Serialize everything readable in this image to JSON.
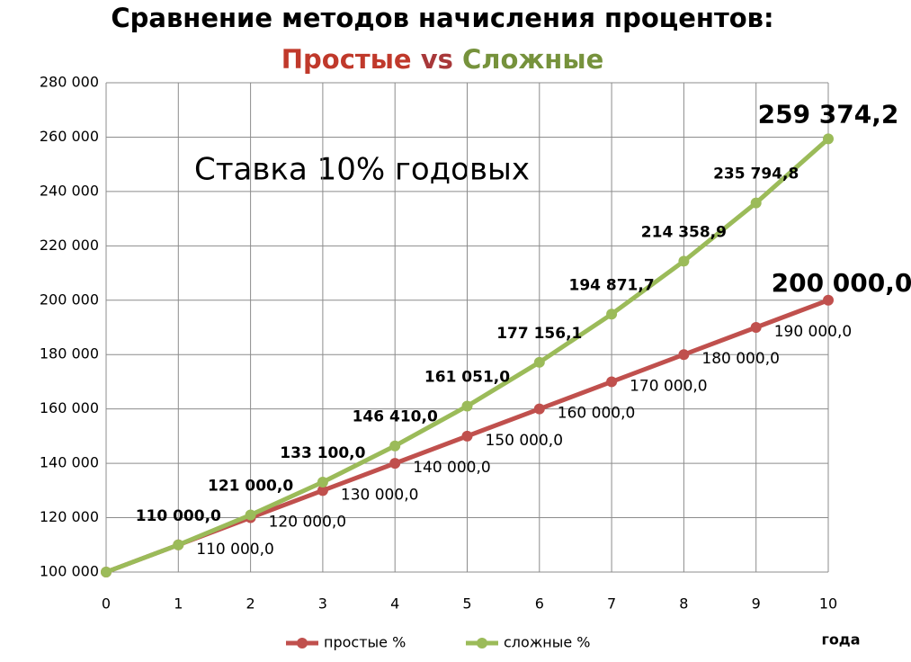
{
  "chart_data": {
    "type": "line",
    "title": "Сравнение методов начисления процентов:",
    "subtitle": [
      "Простые",
      "vs",
      "Сложные"
    ],
    "annotation": "Ставка 10% годовых",
    "x_label": "года",
    "x": [
      0,
      1,
      2,
      3,
      4,
      5,
      6,
      7,
      8,
      9,
      10
    ],
    "xlim": [
      0,
      10
    ],
    "xticks": [
      0,
      1,
      2,
      3,
      4,
      5,
      6,
      7,
      8,
      9,
      10
    ],
    "ylim": [
      100000,
      280000
    ],
    "yticks": [
      {
        "value": 100000,
        "label": "100 000"
      },
      {
        "value": 120000,
        "label": "120 000"
      },
      {
        "value": 140000,
        "label": "140 000"
      },
      {
        "value": 160000,
        "label": "160 000"
      },
      {
        "value": 180000,
        "label": "180 000"
      },
      {
        "value": 200000,
        "label": "200 000"
      },
      {
        "value": 220000,
        "label": "220 000"
      },
      {
        "value": 240000,
        "label": "240 000"
      },
      {
        "value": 260000,
        "label": "260 000"
      },
      {
        "value": 280000,
        "label": "280 000"
      }
    ],
    "grid": true,
    "legend": "bottom",
    "series": [
      {
        "name": "простые %",
        "color": "#c0504d",
        "label_color": "#c0304a",
        "values": [
          100000,
          110000,
          120000,
          130000,
          140000,
          150000,
          160000,
          170000,
          180000,
          190000,
          200000
        ],
        "value_labels": [
          null,
          "110 000,0",
          "120 000,0",
          "130 000,0",
          "140 000,0",
          "150 000,0",
          "160 000,0",
          "170 000,0",
          "180 000,0",
          "190 000,0",
          "200 000,0"
        ]
      },
      {
        "name": "сложные %",
        "color": "#9bbb59",
        "label_color": "#4f6228",
        "values": [
          100000,
          110000,
          121000,
          133100,
          146410,
          161051,
          177156.1,
          194871.7,
          214358.9,
          235794.8,
          259374.2
        ],
        "value_labels": [
          null,
          "110 000,0",
          "121 000,0",
          "133 100,0",
          "146 410,0",
          "161 051,0",
          "177 156,1",
          "194 871,7",
          "214 358,9",
          "235 794,8",
          "259 374,2"
        ]
      }
    ]
  }
}
